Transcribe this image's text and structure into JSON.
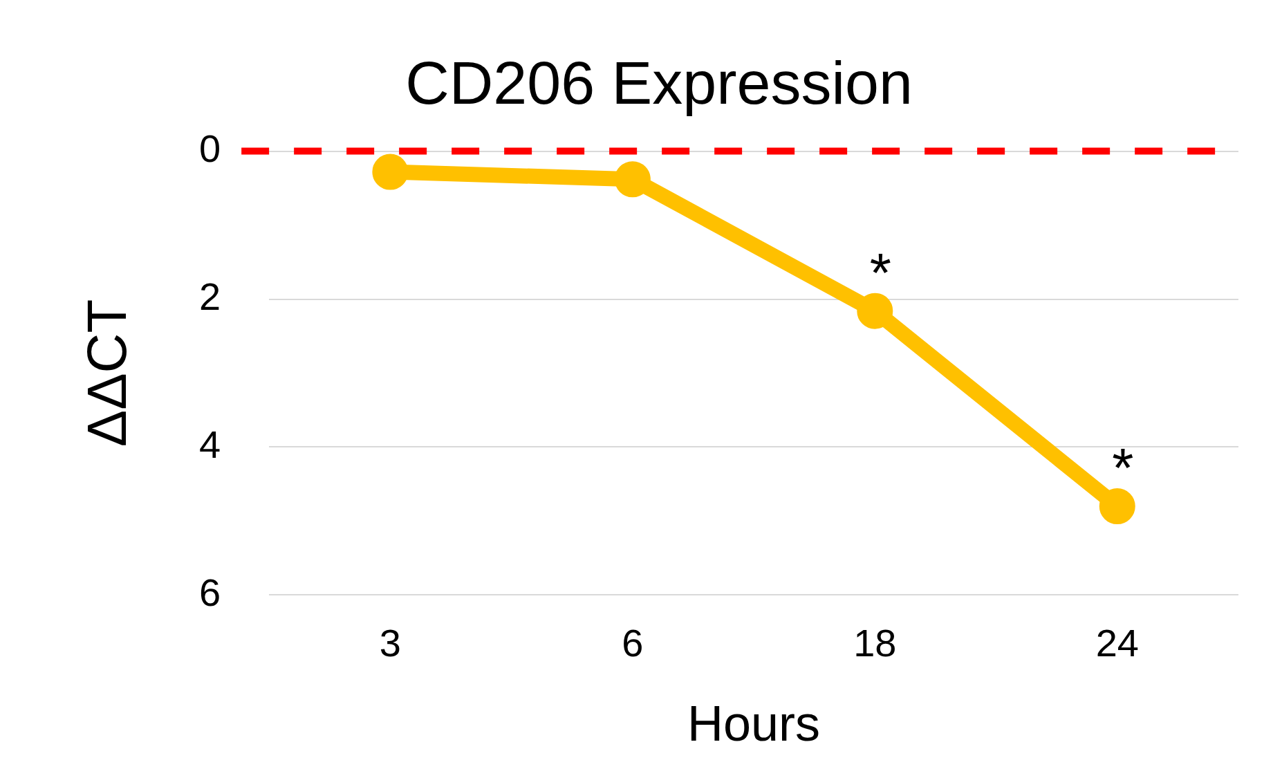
{
  "chart_data": {
    "type": "line",
    "title": "CD206 Expression",
    "xlabel": "Hours",
    "ylabel": "ΔΔCT",
    "categories": [
      "3",
      "6",
      "18",
      "24"
    ],
    "series": [
      {
        "color": "#ffc000",
        "values": [
          0.28,
          0.38,
          2.16,
          4.8
        ]
      }
    ],
    "ylim": [
      6,
      0
    ],
    "yticks": [
      0,
      2,
      4,
      6
    ],
    "grid": "y",
    "legend": false,
    "marker": "circle",
    "line_style": "solid",
    "ref_lines": [
      {
        "axis": "y",
        "value": 0,
        "color": "#ff0000",
        "line_style": "dashed"
      }
    ],
    "annotations": [
      {
        "text": "*",
        "x": "18",
        "y": 2.16
      },
      {
        "text": "*",
        "x": "24",
        "y": 4.8
      }
    ]
  }
}
